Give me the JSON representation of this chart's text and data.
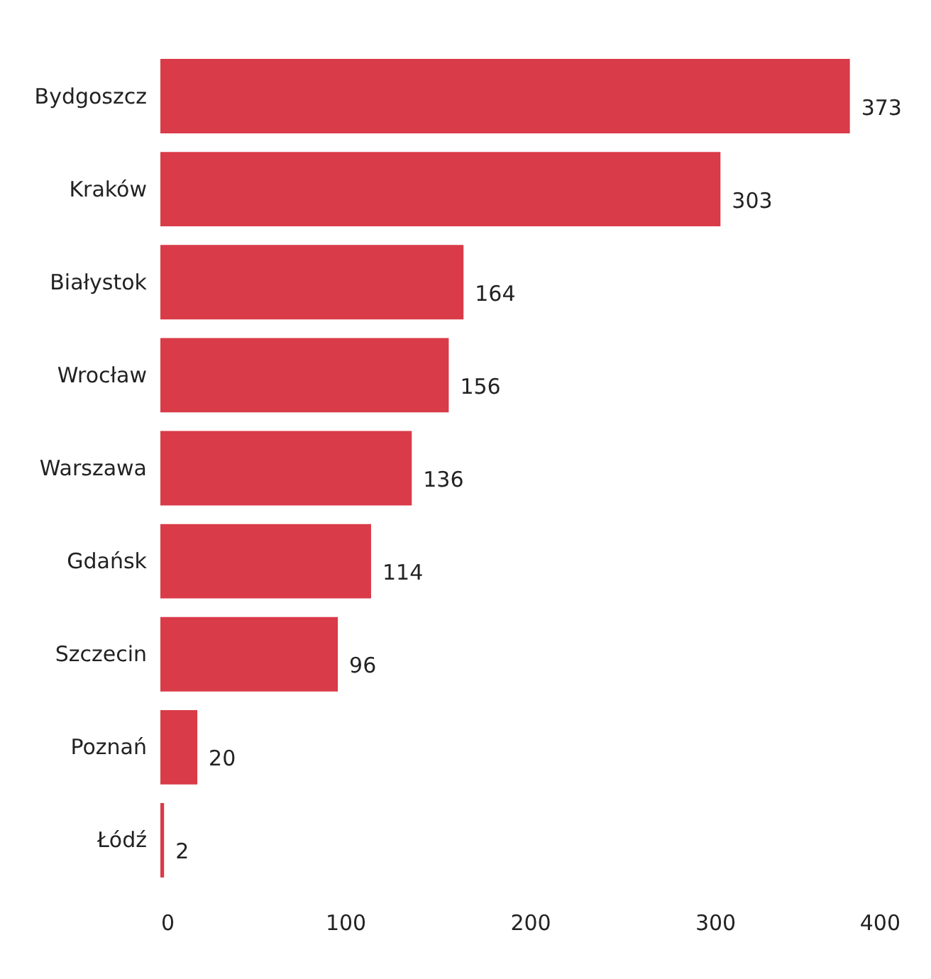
{
  "chart_data": {
    "type": "bar",
    "orientation": "horizontal",
    "categories": [
      "Bydgoszcz",
      "Kraków",
      "Białystok",
      "Wrocław",
      "Warszawa",
      "Gdańsk",
      "Szczecin",
      "Poznań",
      "Łódź"
    ],
    "values": [
      373,
      303,
      164,
      156,
      136,
      114,
      96,
      20,
      2
    ],
    "color": "#d93b48",
    "xlim": [
      0,
      400
    ],
    "xticks": [
      0,
      100,
      200,
      300,
      400
    ],
    "grid": false,
    "data_labels": true
  }
}
